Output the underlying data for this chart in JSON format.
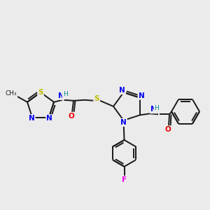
{
  "background_color": "#ebebeb",
  "bond_color": "#1a1a1a",
  "atom_colors": {
    "N": "#0000ee",
    "S": "#bbbb00",
    "O": "#ee0000",
    "F": "#ee00ee",
    "H": "#008888",
    "C": "#1a1a1a"
  },
  "figsize": [
    3.0,
    3.0
  ],
  "dpi": 100
}
